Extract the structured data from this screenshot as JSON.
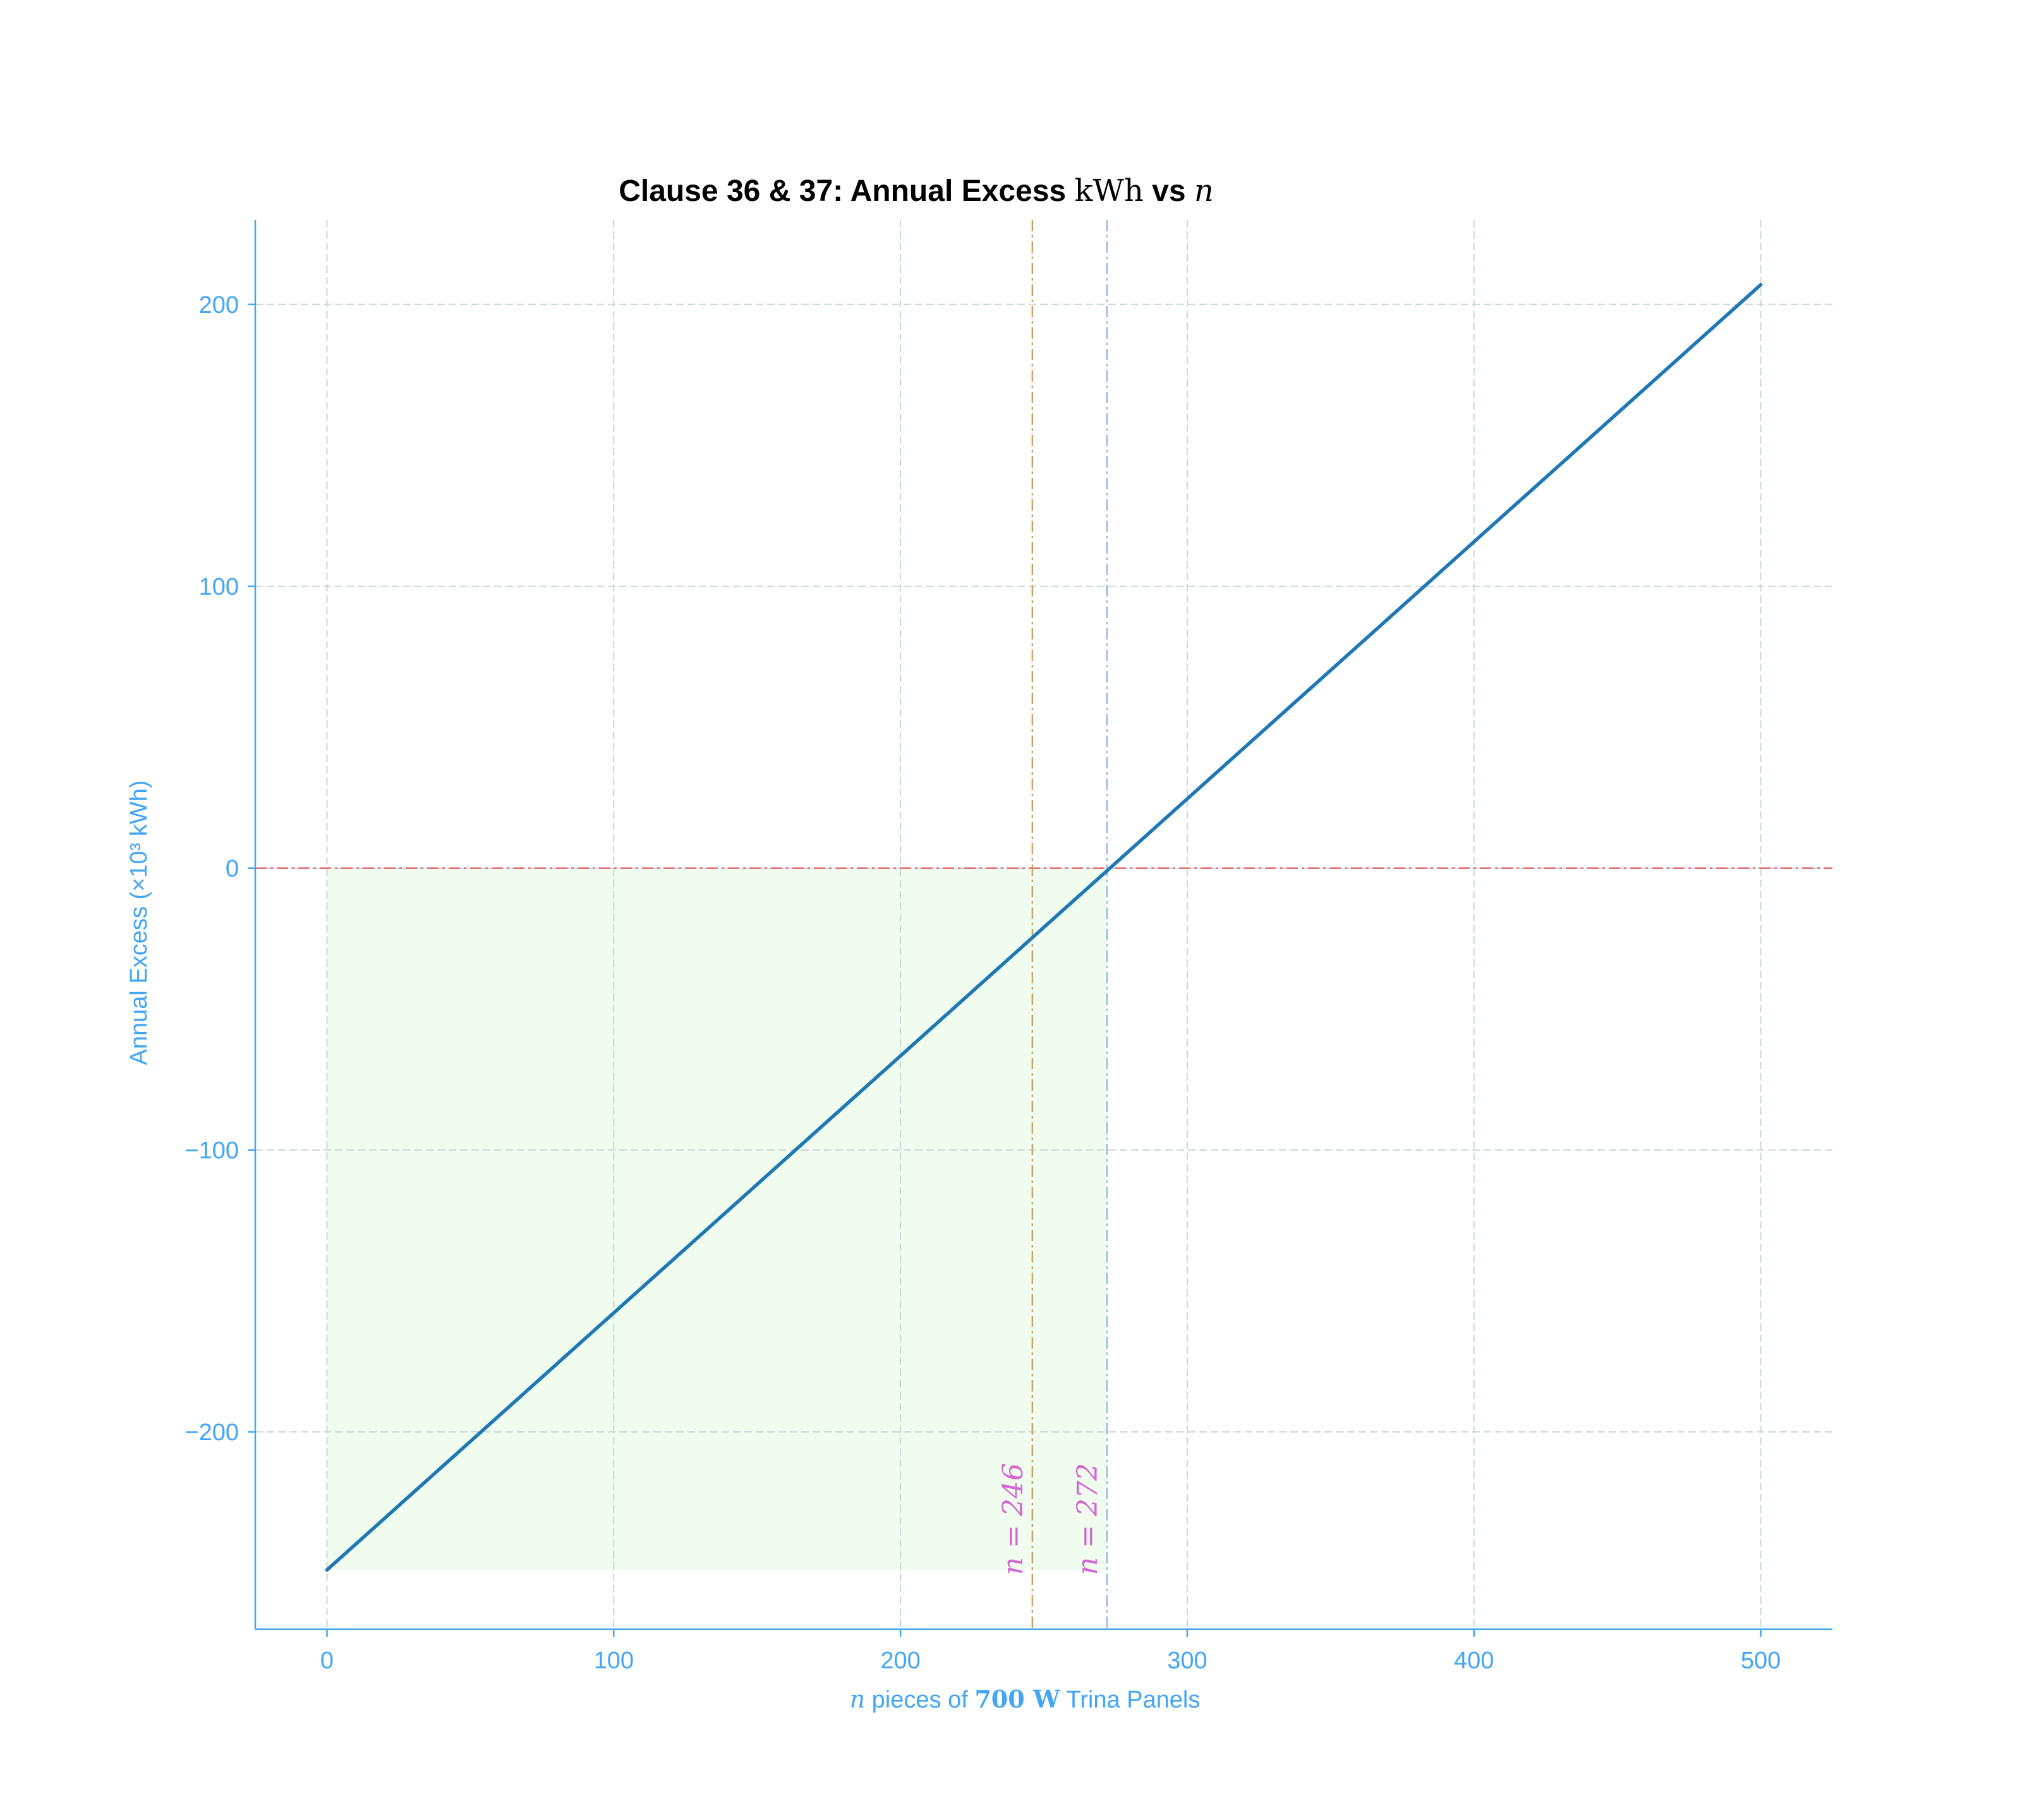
{
  "chart_data": {
    "type": "line",
    "title": {
      "prefix": "Clause 36 & 37: Annual Excess ",
      "unit": "kWh",
      "middle": " vs ",
      "variable": "n"
    },
    "xlabel": {
      "variable": "n",
      "text1": " pieces of ",
      "rating": "700 W",
      "text2": " Trina Panels"
    },
    "ylabel": {
      "text": "Annual Excess (×10³ kWh)"
    },
    "xlim": [
      -25,
      525
    ],
    "ylim": [
      -270,
      230
    ],
    "x_ticks": [
      0,
      100,
      200,
      300,
      400,
      500
    ],
    "y_ticks": [
      -200,
      -100,
      0,
      100,
      200
    ],
    "grid": true,
    "series": [
      {
        "x": [
          0,
          500
        ],
        "y": [
          -249,
          207
        ],
        "color": "#1f77b4"
      }
    ],
    "reference_lines": [
      {
        "axis": "y",
        "value": 0,
        "color": "#e06c75",
        "style": "dash-dot"
      },
      {
        "axis": "x",
        "value": 246,
        "color": "#c8a265",
        "style": "dash-dot",
        "label": "n = 246"
      },
      {
        "axis": "x",
        "value": 272,
        "color": "#9db7e6",
        "style": "dash-dot",
        "label": "n = 272"
      }
    ],
    "shaded_region": {
      "x": [
        0,
        272
      ],
      "y": [
        -249,
        0
      ],
      "color": "#effcee"
    },
    "colors": {
      "axis": "#42a5f5",
      "grid": "#c9d6d6",
      "annotation": "#d466d4"
    }
  }
}
